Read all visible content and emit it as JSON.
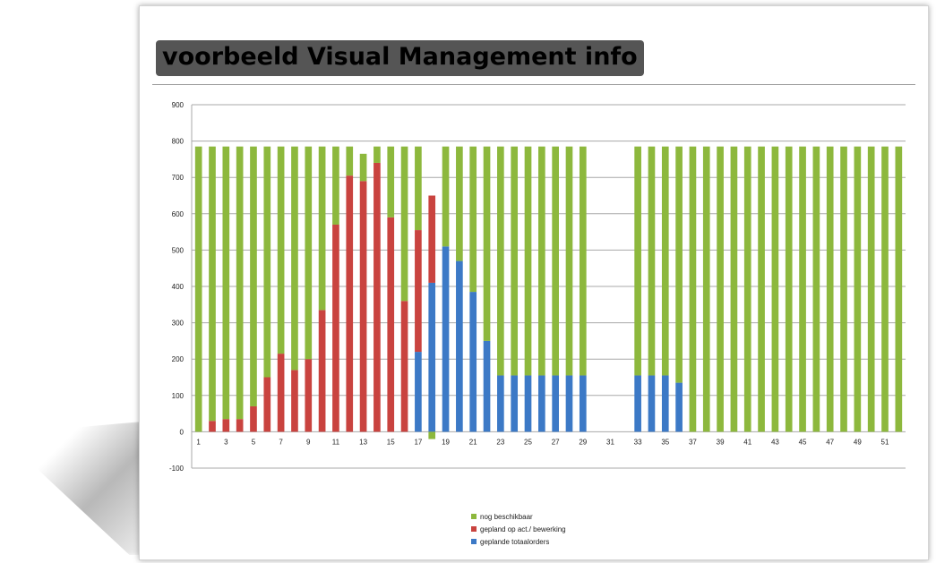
{
  "title": "voorbeeld Visual Management info",
  "colors": {
    "green": "#8db83d",
    "red": "#c9433f",
    "blue": "#3c79c6"
  },
  "chart_data": {
    "type": "bar",
    "stacked": true,
    "ylim": [
      -100,
      900
    ],
    "yticks": [
      -100,
      0,
      100,
      200,
      300,
      400,
      500,
      600,
      700,
      800,
      900
    ],
    "xtick_labels": [
      "1",
      "3",
      "5",
      "7",
      "9",
      "11",
      "13",
      "15",
      "17",
      "19",
      "21",
      "23",
      "25",
      "27",
      "29",
      "31",
      "33",
      "35",
      "37",
      "39",
      "41",
      "43",
      "45",
      "47",
      "49",
      "51"
    ],
    "grid": true,
    "legend_position": "bottom",
    "categories": [
      1,
      2,
      3,
      4,
      5,
      6,
      7,
      8,
      9,
      10,
      11,
      12,
      13,
      14,
      15,
      16,
      17,
      18,
      19,
      20,
      21,
      22,
      23,
      24,
      25,
      26,
      27,
      28,
      29,
      30,
      31,
      32,
      33,
      34,
      35,
      36,
      37,
      38,
      39,
      40,
      41,
      42,
      43,
      44,
      45,
      46,
      47,
      48,
      49,
      50,
      51,
      52
    ],
    "series": [
      {
        "name": "geplande totaalorders",
        "color": "#3c79c6",
        "values": [
          0,
          0,
          0,
          0,
          0,
          0,
          0,
          0,
          0,
          0,
          0,
          0,
          0,
          0,
          0,
          0,
          220,
          410,
          510,
          470,
          385,
          250,
          155,
          155,
          155,
          155,
          155,
          155,
          155,
          0,
          0,
          0,
          155,
          155,
          155,
          135,
          0,
          0,
          0,
          0,
          0,
          0,
          0,
          0,
          0,
          0,
          0,
          0,
          0,
          0,
          0,
          0
        ]
      },
      {
        "name": "gepland op act./ bewerking",
        "color": "#c9433f",
        "values": [
          0,
          30,
          35,
          35,
          70,
          150,
          215,
          170,
          200,
          335,
          570,
          705,
          690,
          740,
          590,
          360,
          335,
          240,
          0,
          0,
          0,
          0,
          0,
          0,
          0,
          0,
          0,
          0,
          0,
          0,
          0,
          0,
          0,
          0,
          0,
          0,
          0,
          0,
          0,
          0,
          0,
          0,
          0,
          0,
          0,
          0,
          0,
          0,
          0,
          0,
          0,
          0
        ]
      },
      {
        "name": "nog beschikbaar",
        "color": "#8db83d",
        "values": [
          785,
          755,
          750,
          750,
          715,
          635,
          570,
          615,
          585,
          450,
          215,
          80,
          75,
          45,
          195,
          425,
          230,
          -20,
          275,
          315,
          400,
          535,
          630,
          630,
          630,
          630,
          630,
          630,
          630,
          0,
          0,
          0,
          630,
          630,
          630,
          650,
          785,
          785,
          785,
          785,
          785,
          785,
          785,
          785,
          785,
          785,
          785,
          785,
          785,
          785,
          785,
          785
        ]
      }
    ]
  }
}
